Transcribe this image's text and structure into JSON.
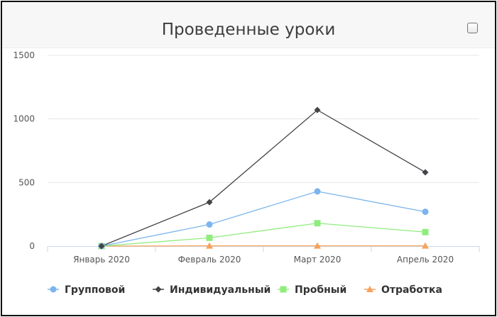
{
  "title": "Проведенные уроки",
  "chart_data": {
    "type": "line",
    "title": "Проведенные уроки",
    "categories": [
      "Январь 2020",
      "Февраль 2020",
      "Март 2020",
      "Апрель 2020"
    ],
    "ylim": [
      0,
      1500
    ],
    "yticks": [
      0,
      500,
      1000,
      1500
    ],
    "grid": true,
    "legend_position": "bottom-left",
    "series": [
      {
        "name": "Групповой",
        "values": [
          0,
          170,
          430,
          270
        ],
        "color": "#7cb5ec",
        "marker": "circle"
      },
      {
        "name": "Индивидуальный",
        "values": [
          0,
          345,
          1070,
          580
        ],
        "color": "#434348",
        "marker": "diamond"
      },
      {
        "name": "Пробный",
        "values": [
          0,
          65,
          180,
          110
        ],
        "color": "#90ed7d",
        "marker": "square"
      },
      {
        "name": "Отработка",
        "values": [
          0,
          2,
          2,
          2
        ],
        "color": "#f7a35c",
        "marker": "triangle"
      }
    ]
  }
}
